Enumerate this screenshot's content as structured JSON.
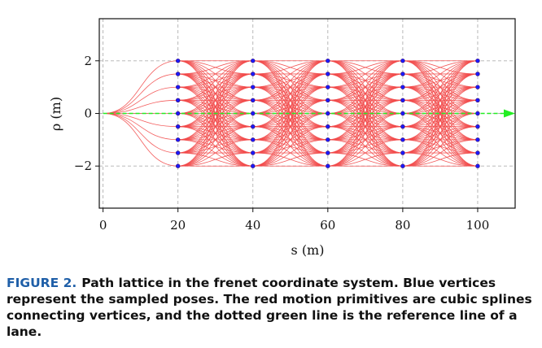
{
  "chart_data": {
    "type": "line",
    "xlabel": "s (m)",
    "ylabel": "ρ (m)",
    "xlim": [
      -1,
      110
    ],
    "ylim": [
      -3.6,
      3.6
    ],
    "xticks": [
      0,
      20,
      40,
      60,
      80,
      100
    ],
    "xtick_labels": [
      "0",
      "20",
      "40",
      "60",
      "80",
      "100"
    ],
    "yticks": [
      2,
      0,
      -2
    ],
    "ytick_labels": [
      "2",
      "0",
      "−2"
    ],
    "grid": true,
    "origin": [
      0,
      0
    ],
    "vertex_columns_s": [
      20,
      40,
      60,
      80,
      100
    ],
    "vertex_rows_rho": [
      2,
      1.5,
      1,
      0.5,
      0,
      -0.5,
      -1,
      -1.5,
      -2
    ],
    "reference_line": {
      "rho": 0,
      "s_start": 0,
      "s_end": 110
    },
    "colors": {
      "primitives": "#f24a4a",
      "vertices": "#1a1aff",
      "reference": "#22ee22"
    }
  },
  "caption": {
    "label": "FIGURE 2.",
    "text": "Path lattice in the frenet coordinate system. Blue vertices represent the sampled poses. The red motion primitives are cubic splines connecting vertices, and the dotted green line is the reference line of a lane."
  }
}
